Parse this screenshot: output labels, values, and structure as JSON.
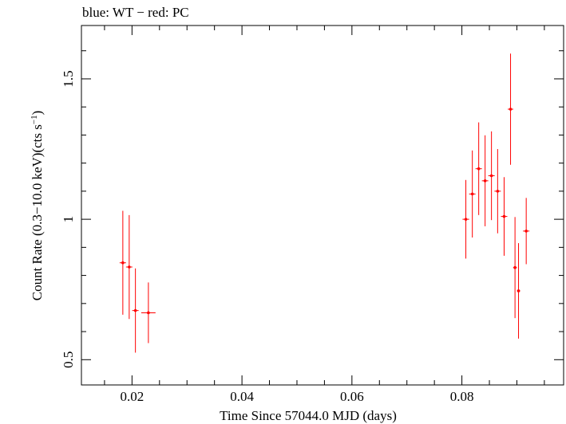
{
  "chart_data": {
    "type": "scatter",
    "title": "blue: WT − red: PC",
    "xlabel": "Time Since 57044.0 MJD (days)",
    "ylabel_main": "Count Rate (0.3−10.0 keV)(cts s",
    "ylabel_sup": "−1",
    "ylabel_end": ")",
    "xlim": [
      0.0108,
      0.0985
    ],
    "ylim": [
      0.41,
      1.69
    ],
    "xticks": [
      {
        "value": 0.02,
        "label": "0.02"
      },
      {
        "value": 0.04,
        "label": "0.04"
      },
      {
        "value": 0.06,
        "label": "0.06"
      },
      {
        "value": 0.08,
        "label": "0.08"
      }
    ],
    "yticks": [
      {
        "value": 0.5,
        "label": "0.5"
      },
      {
        "value": 1.0,
        "label": "1"
      },
      {
        "value": 1.5,
        "label": "1.5"
      }
    ],
    "series": [
      {
        "name": "WT",
        "color": "#0000ff",
        "points": []
      },
      {
        "name": "PC",
        "color": "#ff0000",
        "points": [
          {
            "x": 0.01833,
            "xerr": 0.00058,
            "y": 0.845,
            "yerr": 0.185
          },
          {
            "x": 0.01949,
            "xerr": 0.00058,
            "y": 0.83,
            "yerr": 0.185
          },
          {
            "x": 0.02062,
            "xerr": 0.00058,
            "y": 0.675,
            "yerr": 0.15
          },
          {
            "x": 0.02298,
            "xerr": 0.0013,
            "y": 0.667,
            "yerr": 0.108
          },
          {
            "x": 0.08072,
            "xerr": 0.0006,
            "y": 1.0,
            "yerr": 0.14
          },
          {
            "x": 0.0819,
            "xerr": 0.00058,
            "y": 1.09,
            "yerr": 0.155
          },
          {
            "x": 0.08306,
            "xerr": 0.00058,
            "y": 1.18,
            "yerr": 0.165
          },
          {
            "x": 0.08422,
            "xerr": 0.00058,
            "y": 1.137,
            "yerr": 0.162
          },
          {
            "x": 0.08538,
            "xerr": 0.00058,
            "y": 1.155,
            "yerr": 0.158
          },
          {
            "x": 0.0865,
            "xerr": 0.00058,
            "y": 1.1,
            "yerr": 0.15
          },
          {
            "x": 0.08768,
            "xerr": 0.00058,
            "y": 1.01,
            "yerr": 0.14
          },
          {
            "x": 0.08885,
            "xerr": 0.0005,
            "y": 1.392,
            "yerr": 0.198
          },
          {
            "x": 0.08966,
            "xerr": 0.00034,
            "y": 0.828,
            "yerr": 0.18
          },
          {
            "x": 0.0903,
            "xerr": 0.0003,
            "y": 0.745,
            "yerr": 0.17
          },
          {
            "x": 0.0917,
            "xerr": 0.00058,
            "y": 0.958,
            "yerr": 0.118
          }
        ]
      }
    ]
  }
}
